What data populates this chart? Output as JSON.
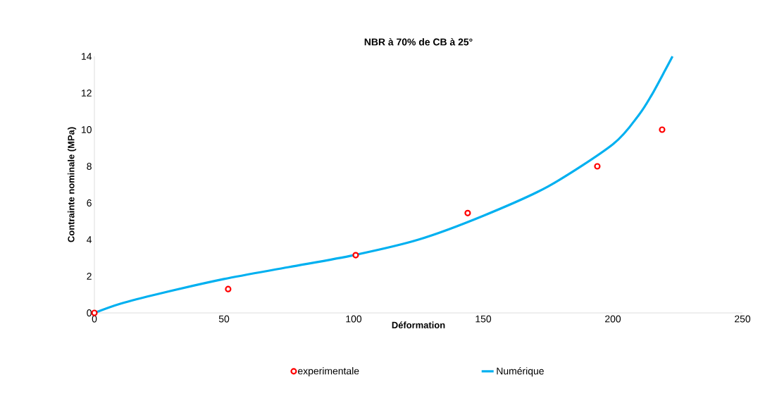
{
  "chart_data": {
    "type": "scatter",
    "title": "NBR à 70% de CB à 25°",
    "xlabel": "Déformation",
    "ylabel": "Contrainte nominale (MPa)",
    "xlim": [
      0,
      250
    ],
    "ylim": [
      0,
      14
    ],
    "xticks": [
      0,
      50,
      100,
      150,
      200,
      250
    ],
    "yticks": [
      0,
      2,
      4,
      6,
      8,
      10,
      12,
      14
    ],
    "grid": false,
    "legend": "bottom",
    "series": [
      {
        "name": "experimentale",
        "marker": "circle",
        "color": "#ff0000",
        "x": [
          0,
          51.6,
          100.8,
          144,
          194,
          219
        ],
        "values": [
          0,
          1.3,
          3.15,
          5.45,
          8.0,
          10.0
        ]
      },
      {
        "name": "Numérique",
        "type": "line",
        "marker": "none",
        "color": "#00b0f0",
        "x": [
          0,
          10,
          25,
          50,
          75,
          100,
          125,
          150,
          175,
          200,
          210,
          215,
          220,
          223
        ],
        "values": [
          0,
          0.5,
          1.05,
          1.85,
          2.5,
          3.15,
          4.0,
          5.3,
          6.9,
          9.2,
          10.8,
          11.9,
          13.2,
          14
        ]
      }
    ]
  }
}
